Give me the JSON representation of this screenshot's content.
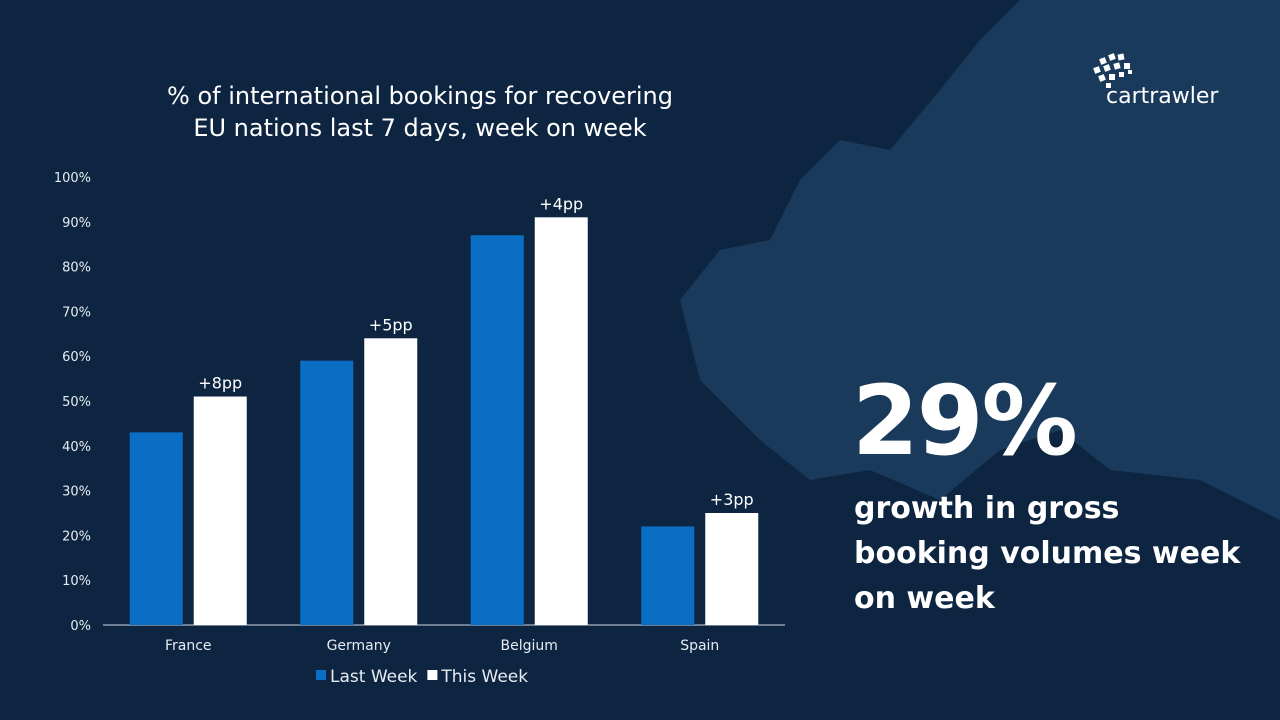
{
  "chart_data": {
    "type": "bar",
    "title": "% of international bookings for recovering EU nations last 7 days, week on week",
    "title_lines": [
      "% of international bookings for recovering",
      "EU nations last 7 days, week on week"
    ],
    "categories": [
      "France",
      "Germany",
      "Belgium",
      "Spain"
    ],
    "series": [
      {
        "name": "Last Week",
        "values": [
          43,
          59,
          87,
          22
        ],
        "color": "#0a6fc4"
      },
      {
        "name": "This Week",
        "values": [
          51,
          64,
          91,
          25
        ],
        "color": "#ffffff"
      }
    ],
    "data_labels": [
      "+8pp",
      "+5pp",
      "+4pp",
      "+3pp"
    ],
    "ylim": [
      0,
      100
    ],
    "yticks": [
      "0%",
      "10%",
      "20%",
      "30%",
      "40%",
      "50%",
      "60%",
      "70%",
      "80%",
      "90%",
      "100%"
    ],
    "xlabel": "",
    "ylabel": "",
    "grid": false,
    "legend": "bottom"
  },
  "highlight": {
    "value": "29%",
    "text": "growth in gross booking volumes week on week"
  },
  "logo": {
    "text": "cartrawler"
  }
}
